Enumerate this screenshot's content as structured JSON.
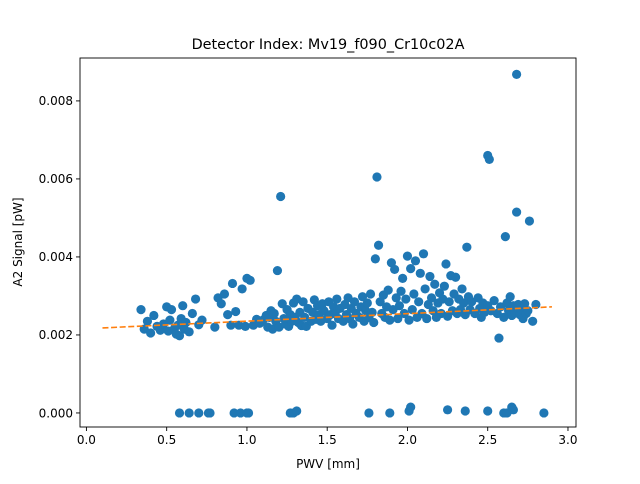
{
  "chart_data": {
    "type": "scatter",
    "title": "Detector Index: Mv19_f090_Cr10c02A",
    "xlabel": "PWV [mm]",
    "ylabel": "A2 Signal [pW]",
    "xlim": [
      -0.04,
      3.05
    ],
    "ylim": [
      -0.00036,
      0.0091
    ],
    "xticks": [
      0.0,
      0.5,
      1.0,
      1.5,
      2.0,
      2.5,
      3.0
    ],
    "xtick_labels": [
      "0.0",
      "0.5",
      "1.0",
      "1.5",
      "2.0",
      "2.5",
      "3.0"
    ],
    "yticks": [
      0.0,
      0.002,
      0.004,
      0.006,
      0.008
    ],
    "ytick_labels": [
      "0.000",
      "0.002",
      "0.004",
      "0.006",
      "0.008"
    ],
    "grid": false,
    "series": [
      {
        "name": "data",
        "kind": "scatter",
        "color": "#1f77b4",
        "points": [
          [
            0.34,
            0.00265
          ],
          [
            0.36,
            0.00215
          ],
          [
            0.38,
            0.00235
          ],
          [
            0.4,
            0.00205
          ],
          [
            0.42,
            0.0025
          ],
          [
            0.44,
            0.00222
          ],
          [
            0.46,
            0.00212
          ],
          [
            0.48,
            0.00228
          ],
          [
            0.5,
            0.00272
          ],
          [
            0.51,
            0.0021
          ],
          [
            0.52,
            0.00238
          ],
          [
            0.53,
            0.00265
          ],
          [
            0.55,
            0.00218
          ],
          [
            0.56,
            0.00202
          ],
          [
            0.57,
            0.00225
          ],
          [
            0.58,
            0.00198
          ],
          [
            0.59,
            0.00242
          ],
          [
            0.6,
            0.00275
          ],
          [
            0.61,
            0.00215
          ],
          [
            0.62,
            0.00232
          ],
          [
            0.64,
            0.00208
          ],
          [
            0.66,
            0.00255
          ],
          [
            0.68,
            0.00292
          ],
          [
            0.7,
            0.00226
          ],
          [
            0.72,
            0.00238
          ],
          [
            0.8,
            0.0022
          ],
          [
            0.82,
            0.00295
          ],
          [
            0.84,
            0.0028
          ],
          [
            0.86,
            0.00305
          ],
          [
            0.88,
            0.00252
          ],
          [
            0.9,
            0.00225
          ],
          [
            0.91,
            0.00332
          ],
          [
            0.93,
            0.0026
          ],
          [
            0.95,
            0.00225
          ],
          [
            0.97,
            0.00318
          ],
          [
            0.99,
            0.00222
          ],
          [
            1.0,
            0.00345
          ],
          [
            1.02,
            0.0034
          ],
          [
            1.04,
            0.00225
          ],
          [
            1.06,
            0.0024
          ],
          [
            1.08,
            0.0023
          ],
          [
            1.1,
            0.00238
          ],
          [
            1.12,
            0.0025
          ],
          [
            1.13,
            0.0022
          ],
          [
            1.14,
            0.00245
          ],
          [
            1.15,
            0.00262
          ],
          [
            1.16,
            0.00215
          ],
          [
            1.17,
            0.00255
          ],
          [
            1.18,
            0.00235
          ],
          [
            1.19,
            0.00365
          ],
          [
            1.2,
            0.0022
          ],
          [
            1.21,
            0.00555
          ],
          [
            1.22,
            0.0028
          ],
          [
            1.23,
            0.00242
          ],
          [
            1.24,
            0.00228
          ],
          [
            1.25,
            0.00265
          ],
          [
            1.26,
            0.00222
          ],
          [
            1.27,
            0.00252
          ],
          [
            1.28,
            0.00235
          ],
          [
            1.29,
            0.00282
          ],
          [
            1.3,
            0.00245
          ],
          [
            1.31,
            0.00292
          ],
          [
            1.32,
            0.00232
          ],
          [
            1.33,
            0.00258
          ],
          [
            1.34,
            0.00224
          ],
          [
            1.35,
            0.00285
          ],
          [
            1.36,
            0.00245
          ],
          [
            1.37,
            0.00222
          ],
          [
            1.38,
            0.00268
          ],
          [
            1.4,
            0.00235
          ],
          [
            1.41,
            0.00258
          ],
          [
            1.42,
            0.0029
          ],
          [
            1.43,
            0.0024
          ],
          [
            1.44,
            0.00275
          ],
          [
            1.45,
            0.00252
          ],
          [
            1.46,
            0.00235
          ],
          [
            1.47,
            0.0028
          ],
          [
            1.48,
            0.00262
          ],
          [
            1.5,
            0.00242
          ],
          [
            1.51,
            0.00285
          ],
          [
            1.52,
            0.00252
          ],
          [
            1.53,
            0.00225
          ],
          [
            1.54,
            0.00272
          ],
          [
            1.55,
            0.00255
          ],
          [
            1.56,
            0.00292
          ],
          [
            1.57,
            0.00242
          ],
          [
            1.58,
            0.00268
          ],
          [
            1.6,
            0.00235
          ],
          [
            1.61,
            0.00278
          ],
          [
            1.62,
            0.00252
          ],
          [
            1.63,
            0.00295
          ],
          [
            1.64,
            0.00242
          ],
          [
            1.65,
            0.00268
          ],
          [
            1.66,
            0.00228
          ],
          [
            1.67,
            0.00285
          ],
          [
            1.68,
            0.00255
          ],
          [
            1.7,
            0.00245
          ],
          [
            1.71,
            0.00272
          ],
          [
            1.72,
            0.00298
          ],
          [
            1.73,
            0.00235
          ],
          [
            1.74,
            0.00262
          ],
          [
            1.75,
            0.00282
          ],
          [
            1.76,
            0.00245
          ],
          [
            1.77,
            0.00305
          ],
          [
            1.78,
            0.00258
          ],
          [
            1.79,
            0.00232
          ],
          [
            1.8,
            0.00395
          ],
          [
            1.81,
            0.00605
          ],
          [
            1.82,
            0.0043
          ],
          [
            1.83,
            0.00285
          ],
          [
            1.84,
            0.00255
          ],
          [
            1.85,
            0.00302
          ],
          [
            1.86,
            0.00245
          ],
          [
            1.87,
            0.00272
          ],
          [
            1.88,
            0.00315
          ],
          [
            1.89,
            0.00238
          ],
          [
            1.9,
            0.00385
          ],
          [
            1.91,
            0.00265
          ],
          [
            1.92,
            0.00368
          ],
          [
            1.93,
            0.00295
          ],
          [
            1.94,
            0.00242
          ],
          [
            1.95,
            0.00275
          ],
          [
            1.96,
            0.00312
          ],
          [
            1.97,
            0.00345
          ],
          [
            1.98,
            0.00255
          ],
          [
            1.99,
            0.00292
          ],
          [
            2.0,
            0.00402
          ],
          [
            2.01,
            0.00238
          ],
          [
            2.02,
            0.0037
          ],
          [
            2.03,
            0.00265
          ],
          [
            2.04,
            0.00305
          ],
          [
            2.05,
            0.0039
          ],
          [
            2.06,
            0.00245
          ],
          [
            2.07,
            0.00285
          ],
          [
            2.08,
            0.00358
          ],
          [
            2.09,
            0.00255
          ],
          [
            2.1,
            0.00408
          ],
          [
            2.11,
            0.00318
          ],
          [
            2.12,
            0.00242
          ],
          [
            2.13,
            0.00278
          ],
          [
            2.14,
            0.0035
          ],
          [
            2.15,
            0.00295
          ],
          [
            2.16,
            0.00262
          ],
          [
            2.17,
            0.0033
          ],
          [
            2.18,
            0.00245
          ],
          [
            2.19,
            0.00282
          ],
          [
            2.2,
            0.00308
          ],
          [
            2.21,
            0.00255
          ],
          [
            2.22,
            0.00292
          ],
          [
            2.23,
            0.00325
          ],
          [
            2.24,
            0.00382
          ],
          [
            2.25,
            0.00248
          ],
          [
            2.26,
            0.00285
          ],
          [
            2.27,
            0.00352
          ],
          [
            2.28,
            0.00262
          ],
          [
            2.29,
            0.00305
          ],
          [
            2.3,
            0.00348
          ],
          [
            2.31,
            0.00255
          ],
          [
            2.32,
            0.00292
          ],
          [
            2.33,
            0.00265
          ],
          [
            2.34,
            0.00318
          ],
          [
            2.35,
            0.00282
          ],
          [
            2.36,
            0.00252
          ],
          [
            2.37,
            0.00425
          ],
          [
            2.38,
            0.00298
          ],
          [
            2.39,
            0.00265
          ],
          [
            2.4,
            0.00285
          ],
          [
            2.42,
            0.00255
          ],
          [
            2.44,
            0.00295
          ],
          [
            2.45,
            0.00268
          ],
          [
            2.46,
            0.00245
          ],
          [
            2.47,
            0.00282
          ],
          [
            2.48,
            0.00258
          ],
          [
            2.5,
            0.00275
          ],
          [
            2.5,
            0.0066
          ],
          [
            2.51,
            0.0065
          ],
          [
            2.52,
            0.00262
          ],
          [
            2.54,
            0.00288
          ],
          [
            2.56,
            0.00255
          ],
          [
            2.58,
            0.00272
          ],
          [
            2.6,
            0.00245
          ],
          [
            2.61,
            0.00452
          ],
          [
            2.62,
            0.00282
          ],
          [
            2.63,
            0.00262
          ],
          [
            2.64,
            0.00298
          ],
          [
            2.65,
            0.0025
          ],
          [
            2.66,
            0.00275
          ],
          [
            2.67,
            0.00258
          ],
          [
            2.68,
            0.00515
          ],
          [
            2.68,
            0.00868
          ],
          [
            2.69,
            0.00278
          ],
          [
            2.7,
            0.00252
          ],
          [
            2.71,
            0.00265
          ],
          [
            2.72,
            0.00242
          ],
          [
            2.73,
            0.0028
          ],
          [
            2.74,
            0.00255
          ],
          [
            2.75,
            0.00262
          ],
          [
            2.76,
            0.00492
          ],
          [
            2.78,
            0.00235
          ],
          [
            2.8,
            0.00278
          ],
          [
            2.57,
            0.00192
          ],
          [
            0.58,
            0.0
          ],
          [
            0.64,
            0.0
          ],
          [
            0.7,
            0.0
          ],
          [
            0.76,
            0.0
          ],
          [
            0.77,
            0.0
          ],
          [
            0.92,
            0.0
          ],
          [
            0.96,
            0.0
          ],
          [
            1.0,
            0.0
          ],
          [
            1.01,
            0.0
          ],
          [
            1.27,
            0.0
          ],
          [
            1.29,
            0.0
          ],
          [
            1.31,
            5e-05
          ],
          [
            1.76,
            0.0
          ],
          [
            1.89,
            0.0
          ],
          [
            2.01,
            5e-05
          ],
          [
            2.02,
            0.00015
          ],
          [
            2.25,
            8e-05
          ],
          [
            2.36,
            5e-05
          ],
          [
            2.5,
            5e-05
          ],
          [
            2.6,
            0.0
          ],
          [
            2.65,
            0.00015
          ],
          [
            2.66,
            8e-05
          ],
          [
            2.62,
            0.0
          ],
          [
            2.85,
            0.0
          ]
        ]
      },
      {
        "name": "fit",
        "kind": "dashed-line",
        "color": "#ff7f0e",
        "points": [
          [
            0.1,
            0.00218
          ],
          [
            2.9,
            0.00272
          ]
        ]
      }
    ]
  }
}
